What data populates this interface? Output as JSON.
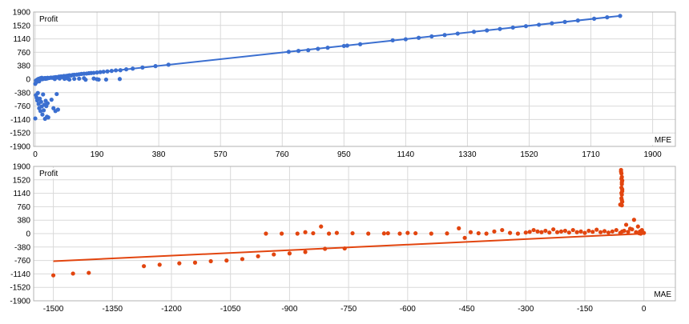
{
  "chart_data": [
    {
      "type": "scatter",
      "ylabel": "Profit",
      "xlabel": "MFE",
      "xlim": [
        -5,
        1970
      ],
      "ylim": [
        -1900,
        1900
      ],
      "xticks": [
        0,
        190,
        380,
        570,
        760,
        950,
        1140,
        1330,
        1520,
        1710,
        1900
      ],
      "yticks": [
        1900,
        1520,
        1140,
        760,
        380,
        0,
        -380,
        -760,
        -1140,
        -1520,
        -1900
      ],
      "grid": true,
      "color": "#3b6fd0",
      "trendline": {
        "x": [
          0,
          1800
        ],
        "y": [
          0,
          1790
        ]
      },
      "points": [
        [
          0,
          -130
        ],
        [
          2,
          -40
        ],
        [
          4,
          -80
        ],
        [
          6,
          -20
        ],
        [
          8,
          0
        ],
        [
          10,
          10
        ],
        [
          12,
          -60
        ],
        [
          14,
          20
        ],
        [
          16,
          30
        ],
        [
          18,
          5
        ],
        [
          20,
          40
        ],
        [
          22,
          0
        ],
        [
          24,
          10
        ],
        [
          26,
          25
        ],
        [
          28,
          15
        ],
        [
          30,
          35
        ],
        [
          32,
          10
        ],
        [
          34,
          30
        ],
        [
          36,
          20
        ],
        [
          38,
          40
        ],
        [
          40,
          30
        ],
        [
          44,
          35
        ],
        [
          48,
          45
        ],
        [
          52,
          40
        ],
        [
          56,
          50
        ],
        [
          60,
          55
        ],
        [
          64,
          60
        ],
        [
          68,
          50
        ],
        [
          72,
          70
        ],
        [
          76,
          75
        ],
        [
          80,
          80
        ],
        [
          84,
          60
        ],
        [
          88,
          90
        ],
        [
          92,
          85
        ],
        [
          96,
          95
        ],
        [
          100,
          100
        ],
        [
          105,
          110
        ],
        [
          110,
          105
        ],
        [
          115,
          120
        ],
        [
          120,
          125
        ],
        [
          128,
          130
        ],
        [
          135,
          140
        ],
        [
          142,
          150
        ],
        [
          150,
          155
        ],
        [
          158,
          160
        ],
        [
          165,
          170
        ],
        [
          172,
          175
        ],
        [
          180,
          180
        ],
        [
          190,
          190
        ],
        [
          200,
          200
        ],
        [
          210,
          210
        ],
        [
          222,
          220
        ],
        [
          235,
          235
        ],
        [
          248,
          250
        ],
        [
          262,
          255
        ],
        [
          280,
          280
        ],
        [
          300,
          300
        ],
        [
          330,
          330
        ],
        [
          370,
          370
        ],
        [
          410,
          410
        ],
        [
          60,
          5
        ],
        [
          75,
          20
        ],
        [
          105,
          -10
        ],
        [
          135,
          15
        ],
        [
          155,
          -15
        ],
        [
          180,
          20
        ],
        [
          218,
          -10
        ],
        [
          195,
          -10
        ],
        [
          190,
          0
        ],
        [
          260,
          5
        ],
        [
          2,
          -450
        ],
        [
          4,
          -520
        ],
        [
          6,
          -600
        ],
        [
          8,
          -390
        ],
        [
          10,
          -700
        ],
        [
          12,
          -820
        ],
        [
          14,
          -550
        ],
        [
          16,
          -900
        ],
        [
          18,
          -640
        ],
        [
          20,
          -770
        ],
        [
          22,
          -1000
        ],
        [
          24,
          -430
        ],
        [
          26,
          -880
        ],
        [
          28,
          -720
        ],
        [
          30,
          -1120
        ],
        [
          32,
          -610
        ],
        [
          34,
          -760
        ],
        [
          36,
          -1060
        ],
        [
          38,
          -680
        ],
        [
          40,
          -1080
        ],
        [
          50,
          -580
        ],
        [
          56,
          -820
        ],
        [
          62,
          -900
        ],
        [
          66,
          -420
        ],
        [
          70,
          -860
        ],
        [
          0,
          -1110
        ],
        [
          90,
          10
        ],
        [
          100,
          20
        ],
        [
          120,
          10
        ],
        [
          150,
          30
        ],
        [
          780,
          775
        ],
        [
          810,
          800
        ],
        [
          840,
          820
        ],
        [
          870,
          860
        ],
        [
          900,
          890
        ],
        [
          950,
          940
        ],
        [
          960,
          950
        ],
        [
          1000,
          990
        ],
        [
          1100,
          1100
        ],
        [
          1140,
          1130
        ],
        [
          1180,
          1170
        ],
        [
          1220,
          1210
        ],
        [
          1260,
          1250
        ],
        [
          1300,
          1290
        ],
        [
          1350,
          1340
        ],
        [
          1390,
          1380
        ],
        [
          1430,
          1420
        ],
        [
          1470,
          1460
        ],
        [
          1510,
          1500
        ],
        [
          1550,
          1540
        ],
        [
          1590,
          1580
        ],
        [
          1630,
          1620
        ],
        [
          1670,
          1660
        ],
        [
          1720,
          1710
        ],
        [
          1760,
          1750
        ],
        [
          1800,
          1790
        ]
      ]
    },
    {
      "type": "scatter",
      "ylabel": "Profit",
      "xlabel": "MAE",
      "xlim": [
        -1550,
        80
      ],
      "ylim": [
        -1900,
        1900
      ],
      "xticks": [
        -1500,
        -1350,
        -1200,
        -1050,
        -900,
        -750,
        -600,
        -450,
        -300,
        -150,
        0
      ],
      "yticks": [
        1900,
        1520,
        1140,
        760,
        380,
        0,
        -380,
        -760,
        -1140,
        -1520,
        -1900
      ],
      "grid": true,
      "color": "#e2450f",
      "trendline": {
        "x": [
          -1500,
          0
        ],
        "y": [
          -780,
          0
        ]
      },
      "points": [
        [
          -1500,
          -1180
        ],
        [
          -1450,
          -1130
        ],
        [
          -1410,
          -1110
        ],
        [
          -1270,
          -920
        ],
        [
          -1230,
          -880
        ],
        [
          -1180,
          -840
        ],
        [
          -1140,
          -820
        ],
        [
          -1100,
          -780
        ],
        [
          -1060,
          -760
        ],
        [
          -1020,
          -720
        ],
        [
          -980,
          -640
        ],
        [
          -940,
          -590
        ],
        [
          -900,
          -560
        ],
        [
          -860,
          -520
        ],
        [
          -810,
          -430
        ],
        [
          -760,
          -420
        ],
        [
          -960,
          0
        ],
        [
          -920,
          0
        ],
        [
          -880,
          0
        ],
        [
          -840,
          10
        ],
        [
          -800,
          0
        ],
        [
          -780,
          20
        ],
        [
          -820,
          200
        ],
        [
          -860,
          40
        ],
        [
          -740,
          10
        ],
        [
          -700,
          0
        ],
        [
          -660,
          5
        ],
        [
          -620,
          0
        ],
        [
          -580,
          10
        ],
        [
          -540,
          0
        ],
        [
          -500,
          5
        ],
        [
          -470,
          150
        ],
        [
          -455,
          -120
        ],
        [
          -440,
          40
        ],
        [
          -420,
          10
        ],
        [
          -400,
          0
        ],
        [
          -380,
          60
        ],
        [
          -360,
          100
        ],
        [
          -340,
          20
        ],
        [
          -320,
          0
        ],
        [
          -300,
          30
        ],
        [
          -290,
          50
        ],
        [
          -280,
          100
        ],
        [
          -270,
          60
        ],
        [
          -260,
          40
        ],
        [
          -250,
          80
        ],
        [
          -240,
          30
        ],
        [
          -230,
          120
        ],
        [
          -220,
          40
        ],
        [
          -210,
          60
        ],
        [
          -200,
          80
        ],
        [
          -190,
          30
        ],
        [
          -180,
          100
        ],
        [
          -170,
          40
        ],
        [
          -160,
          60
        ],
        [
          -150,
          20
        ],
        [
          -140,
          80
        ],
        [
          -130,
          50
        ],
        [
          -120,
          110
        ],
        [
          -110,
          40
        ],
        [
          -100,
          70
        ],
        [
          -90,
          30
        ],
        [
          -80,
          60
        ],
        [
          -70,
          100
        ],
        [
          -60,
          20
        ],
        [
          -50,
          80
        ],
        [
          -40,
          50
        ],
        [
          -30,
          120
        ],
        [
          -20,
          40
        ],
        [
          -10,
          60
        ],
        [
          0,
          20
        ],
        [
          -5,
          100
        ],
        [
          -15,
          200
        ],
        [
          -25,
          390
        ],
        [
          -35,
          140
        ],
        [
          -45,
          250
        ],
        [
          -55,
          60
        ],
        [
          -8,
          0
        ],
        [
          -3,
          30
        ],
        [
          -12,
          10
        ],
        [
          -58,
          1800
        ],
        [
          -57,
          1700
        ],
        [
          -56,
          1600
        ],
        [
          -55,
          1500
        ],
        [
          -56,
          1400
        ],
        [
          -57,
          1300
        ],
        [
          -55,
          1200
        ],
        [
          -56,
          1100
        ],
        [
          -57,
          1000
        ],
        [
          -55,
          900
        ],
        [
          -56,
          800
        ],
        [
          -58,
          1750
        ],
        [
          -57,
          1550
        ],
        [
          -56,
          1450
        ],
        [
          -55,
          1250
        ],
        [
          -57,
          1150
        ],
        [
          -56,
          950
        ],
        [
          -60,
          820
        ],
        [
          -600,
          20
        ],
        [
          -650,
          10
        ]
      ]
    }
  ]
}
